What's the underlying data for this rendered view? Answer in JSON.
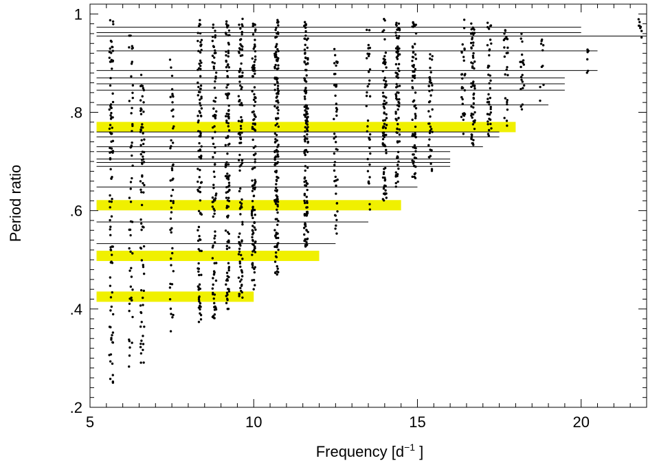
{
  "chart_data": {
    "type": "scatter",
    "title": "",
    "xlabel": "Frequency [d",
    "xlabel_sup": "−1",
    "xlabel_end": " ]",
    "ylabel": "Period ratio",
    "xlim": [
      5,
      22
    ],
    "ylim": [
      0.2,
      1.02
    ],
    "x_ticks": [
      5,
      10,
      15,
      20
    ],
    "x_tick_labels": [
      "5",
      "10",
      "15",
      "20"
    ],
    "y_ticks": [
      0.2,
      0.4,
      0.6,
      0.8,
      1.0
    ],
    "y_tick_labels": [
      ".2",
      ".4",
      ".6",
      ".8",
      "1"
    ],
    "grid": false,
    "highlight_color": "#f0f000",
    "point_color": "#000000",
    "reference_lines": [
      {
        "ratio": 0.973,
        "x_start": 5.2,
        "x_end": 20.0
      },
      {
        "ratio": 0.962,
        "x_start": 5.2,
        "x_end": 20.0
      },
      {
        "ratio": 0.955,
        "x_start": 5.2,
        "x_end": 22.0
      },
      {
        "ratio": 0.925,
        "x_start": 5.2,
        "x_end": 20.5
      },
      {
        "ratio": 0.885,
        "x_start": 5.2,
        "x_end": 20.5
      },
      {
        "ratio": 0.87,
        "x_start": 5.2,
        "x_end": 19.5
      },
      {
        "ratio": 0.858,
        "x_start": 5.2,
        "x_end": 19.5
      },
      {
        "ratio": 0.845,
        "x_start": 5.2,
        "x_end": 19.5
      },
      {
        "ratio": 0.815,
        "x_start": 5.2,
        "x_end": 19.0
      },
      {
        "ratio": 0.76,
        "x_start": 5.2,
        "x_end": 17.5
      },
      {
        "ratio": 0.75,
        "x_start": 5.2,
        "x_end": 17.5
      },
      {
        "ratio": 0.73,
        "x_start": 5.2,
        "x_end": 17.0
      },
      {
        "ratio": 0.72,
        "x_start": 5.2,
        "x_end": 16.0
      },
      {
        "ratio": 0.705,
        "x_start": 5.2,
        "x_end": 16.0
      },
      {
        "ratio": 0.698,
        "x_start": 5.2,
        "x_end": 16.0
      },
      {
        "ratio": 0.69,
        "x_start": 5.2,
        "x_end": 16.0
      },
      {
        "ratio": 0.648,
        "x_start": 5.2,
        "x_end": 15.0
      },
      {
        "ratio": 0.577,
        "x_start": 5.2,
        "x_end": 13.5
      },
      {
        "ratio": 0.533,
        "x_start": 5.2,
        "x_end": 12.5
      }
    ],
    "highlight_bands": [
      {
        "ratio": 0.77,
        "x_start": 5.2,
        "x_end": 18.0
      },
      {
        "ratio": 0.611,
        "x_start": 5.2,
        "x_end": 14.5
      },
      {
        "ratio": 0.508,
        "x_start": 5.2,
        "x_end": 12.0
      },
      {
        "ratio": 0.425,
        "x_start": 5.2,
        "x_end": 10.0
      }
    ],
    "series": [
      {
        "x": [
          5.65,
          6.25,
          6.6,
          7.5,
          8.35,
          8.8,
          9.2,
          9.6,
          10.0,
          10.7,
          11.6,
          12.5,
          13.5,
          14.0,
          14.4,
          14.9,
          15.4,
          16.4,
          16.7,
          17.2,
          17.7,
          18.2,
          18.8,
          20.2,
          21.8
        ],
        "y_min": [
          0.25,
          0.28,
          0.29,
          0.33,
          0.37,
          0.38,
          0.4,
          0.42,
          0.44,
          0.47,
          0.52,
          0.55,
          0.6,
          0.62,
          0.64,
          0.66,
          0.68,
          0.72,
          0.73,
          0.75,
          0.77,
          0.8,
          0.82,
          0.88,
          0.95
        ],
        "y_max": [
          0.99,
          0.96,
          0.88,
          0.91,
          0.99,
          0.99,
          0.99,
          0.99,
          0.99,
          0.99,
          0.99,
          0.93,
          0.97,
          0.99,
          0.99,
          0.99,
          0.93,
          0.99,
          0.99,
          0.99,
          0.97,
          0.97,
          0.97,
          0.93,
          0.99
        ],
        "count": [
          95,
          55,
          75,
          50,
          110,
          95,
          120,
          110,
          125,
          155,
          140,
          45,
          40,
          80,
          90,
          70,
          40,
          30,
          60,
          40,
          25,
          20,
          10,
          6,
          8
        ]
      }
    ]
  }
}
